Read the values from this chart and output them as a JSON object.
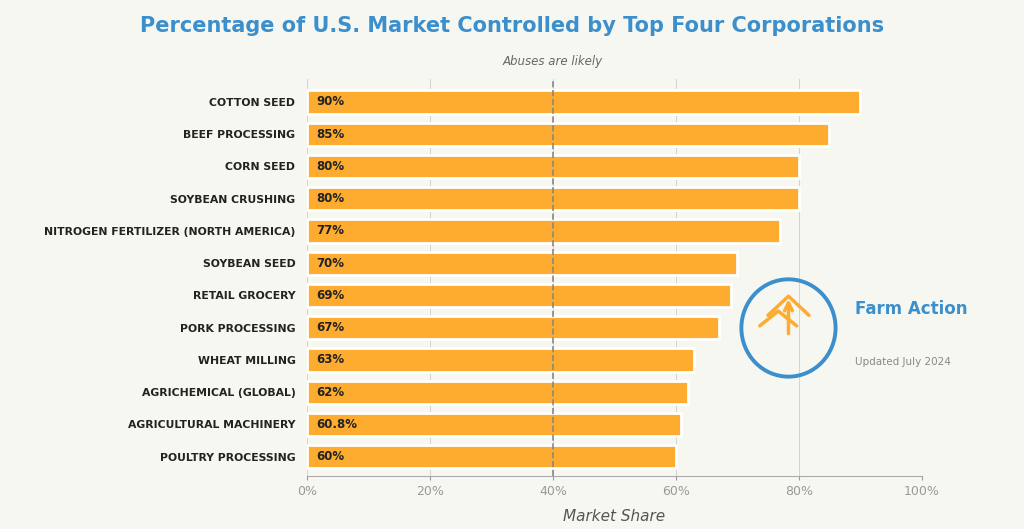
{
  "title": "Percentage of U.S. Market Controlled by Top Four Corporations",
  "title_color": "#3A8FCC",
  "xlabel": "Market Share",
  "background_color": "#f7f7f2",
  "bar_color": "#FDAC30",
  "categories": [
    "COTTON SEED",
    "BEEF PROCESSING",
    "CORN SEED",
    "SOYBEAN CRUSHING",
    "NITROGEN FERTILIZER (NORTH AMERICA)",
    "SOYBEAN SEED",
    "RETAIL GROCERY",
    "PORK PROCESSING",
    "WHEAT MILLING",
    "AGRICHEMICAL (GLOBAL)",
    "AGRICULTURAL MACHINERY",
    "POULTRY PROCESSING"
  ],
  "values": [
    90,
    85,
    80,
    80,
    77,
    70,
    69,
    67,
    63,
    62,
    60.8,
    60
  ],
  "labels": [
    "90%",
    "85%",
    "80%",
    "80%",
    "77%",
    "70%",
    "69%",
    "67%",
    "63%",
    "62%",
    "60.8%",
    "60%"
  ],
  "dashed_line_x": 40,
  "dashed_line_label": "Abuses are likely",
  "xlim": [
    0,
    100
  ],
  "xticks": [
    0,
    20,
    40,
    60,
    80,
    100
  ],
  "xticklabels": [
    "0%",
    "20%",
    "40%",
    "60%",
    "80%",
    "100%"
  ],
  "watermark_text": "Farm Action",
  "watermark_updated": "Updated July 2024",
  "watermark_color": "#3A8FCC",
  "logo_arrow_color": "#FDAC30"
}
